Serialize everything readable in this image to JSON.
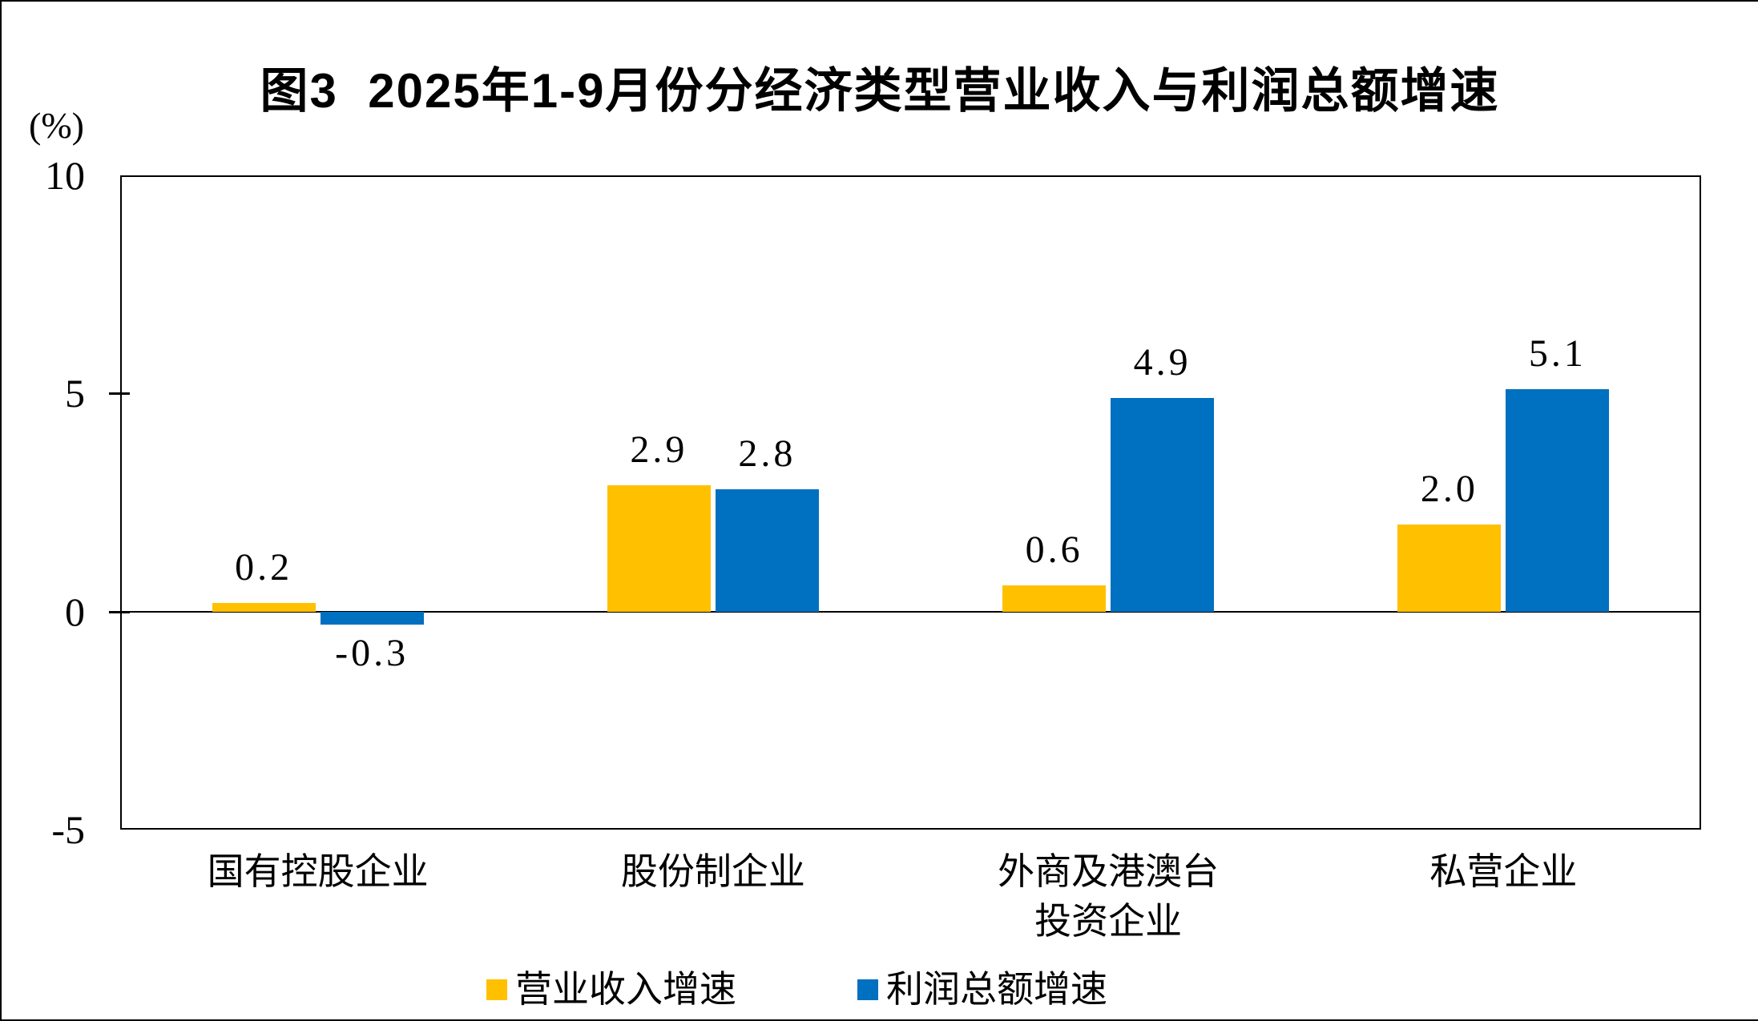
{
  "page": {
    "background": "#FFFFFF",
    "border_color": "#000000"
  },
  "chart_data": {
    "type": "bar",
    "title": "图3  2025年1-9月份分经济类型营业收入与利润总额增速",
    "unit_label": "(%)",
    "categories": [
      "国有控股企业",
      "股份制企业",
      "外商及港澳台投资企业",
      "私营企业"
    ],
    "category_display_lines": [
      [
        "国有控股企业"
      ],
      [
        "股份制企业"
      ],
      [
        "外商及港澳台",
        "投资企业"
      ],
      [
        "私营企业"
      ]
    ],
    "series": [
      {
        "name": "营业收入增速",
        "color": "#FFC000",
        "values": [
          0.2,
          2.9,
          0.6,
          2.0
        ]
      },
      {
        "name": "利润总额增速",
        "color": "#0070C0",
        "values": [
          -0.3,
          2.8,
          4.9,
          5.1
        ]
      }
    ],
    "yaxis": {
      "min": -5,
      "max": 10,
      "ticks": [
        10,
        5,
        0,
        -5
      ],
      "tick_labels": [
        "10",
        "5",
        "0",
        "-5"
      ]
    },
    "bar_label_decimals": 1,
    "grid": false,
    "legend_position": "bottom",
    "legend": [
      {
        "label": "营业收入增速",
        "color": "#FFC000"
      },
      {
        "label": "利润总额增速",
        "color": "#0070C0"
      }
    ]
  }
}
